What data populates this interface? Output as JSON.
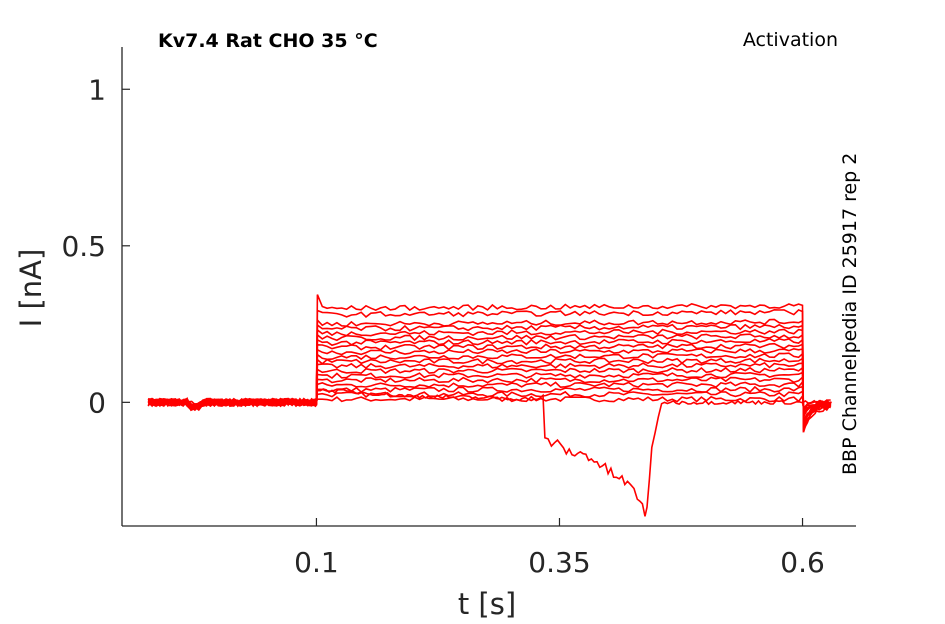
{
  "chart_data": {
    "type": "line",
    "title_left": "Kv7.4  Rat  CHO  35 °C",
    "title_right": "Activation",
    "side_note": "BBP Channelpedia ID 25917 rep 2",
    "xlabel": "t [s]",
    "ylabel": "I [nA]",
    "xlim": [
      -0.1,
      0.655
    ],
    "ylim": [
      -0.395,
      1.135
    ],
    "xticks": [
      0.1,
      0.35,
      0.6
    ],
    "xtick_labels": [
      "0.1",
      "0.35",
      "0.6"
    ],
    "yticks": [
      0,
      0.5,
      1
    ],
    "ytick_labels": [
      "0",
      "0.5",
      "1"
    ],
    "line_color": "#ff0000",
    "protocol": {
      "baseline_start": -0.073,
      "step_start": 0.1,
      "step_end": 0.6,
      "tail_end": 0.63
    },
    "series_levels": [
      0.01,
      0.025,
      0.04,
      0.055,
      0.07,
      0.085,
      0.1,
      0.115,
      0.13,
      0.145,
      0.16,
      0.175,
      0.19,
      0.205,
      0.22,
      0.235,
      0.25,
      0.28,
      0.3
    ],
    "artifact_trace": {
      "x": [
        -0.073,
        0.1,
        0.101,
        0.2,
        0.333,
        0.335,
        0.345,
        0.36,
        0.38,
        0.4,
        0.42,
        0.43,
        0.438,
        0.44,
        0.445,
        0.455,
        0.6,
        0.63
      ],
      "y": [
        0.0,
        0.0,
        0.04,
        0.02,
        0.01,
        -0.12,
        -0.13,
        -0.16,
        -0.17,
        -0.22,
        -0.26,
        -0.3,
        -0.35,
        -0.33,
        -0.15,
        0.0,
        0.0,
        0.0
      ]
    }
  }
}
